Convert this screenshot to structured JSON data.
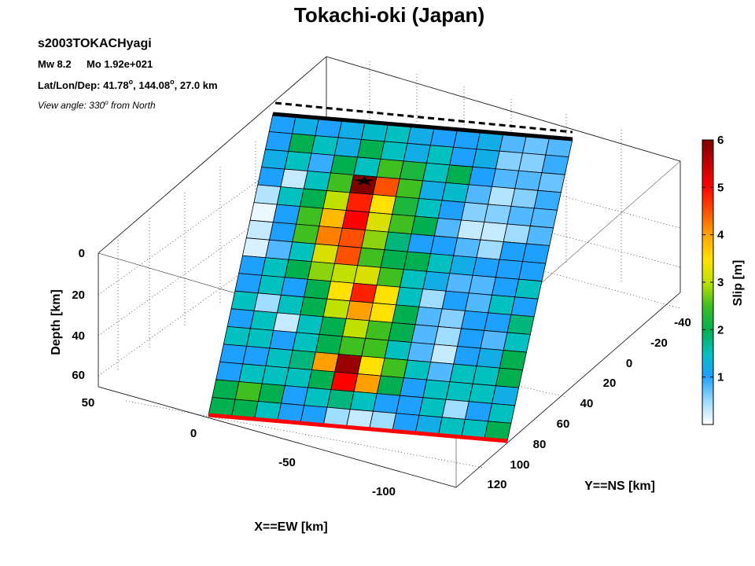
{
  "title": "Tokachi-oki (Japan)",
  "info": {
    "event_id": "s2003TOKACHyagi",
    "magnitude": "Mw 8.2",
    "moment": "Mo 1.92e+021",
    "location_label": "Lat/Lon/Dep:",
    "lat": "41.78",
    "lon": "144.08",
    "depth": "27.0 km",
    "degree_symbol": "o",
    "view_prefix": "View angle: 330",
    "view_suffix": " from North"
  },
  "colorbar": {
    "label": "Slip [m]",
    "ticks": [
      "1",
      "2",
      "3",
      "4",
      "5",
      "6"
    ],
    "range": [
      0,
      6
    ],
    "colormap": "jet (white-to-blue start)"
  },
  "axes": {
    "x_label": "X==EW [km]",
    "y_label": "Y==NS [km]",
    "z_label": "Depth [km]",
    "x_ticks": [
      "50",
      "0",
      "-50",
      "-100"
    ],
    "y_ticks": [
      "-40",
      "-20",
      "0",
      "20",
      "40",
      "60",
      "80",
      "100",
      "120"
    ],
    "z_ticks": [
      "0",
      "20",
      "40",
      "60"
    ],
    "grid": true,
    "box": true
  },
  "chart_data": {
    "type": "heatmap",
    "title": "Tokachi-oki (Japan)",
    "description_values": "slip on fault patches, 13 columns (along strike) x 17 rows (down dip, row 0 = top)",
    "value_unit": "m",
    "rows": 17,
    "cols": 13,
    "values": [
      [
        1.0,
        1.2,
        1.0,
        1.2,
        1.4,
        1.5,
        1.2,
        1.0,
        1.0,
        1.2,
        0.8,
        0.7,
        0.8
      ],
      [
        1.0,
        2.0,
        1.5,
        1.2,
        2.0,
        1.5,
        1.2,
        1.5,
        1.0,
        1.2,
        0.6,
        0.6,
        0.9
      ],
      [
        1.2,
        1.5,
        0.9,
        2.0,
        1.5,
        2.5,
        2.2,
        1.5,
        2.0,
        1.0,
        0.8,
        0.8,
        0.7
      ],
      [
        1.0,
        0.3,
        1.5,
        2.5,
        6.0,
        4.5,
        2.5,
        1.2,
        1.4,
        0.8,
        0.4,
        0.6,
        0.9
      ],
      [
        0.4,
        1.5,
        2.0,
        3.0,
        4.8,
        3.5,
        2.2,
        1.5,
        1.0,
        0.6,
        0.6,
        0.8,
        0.8
      ],
      [
        0.1,
        1.0,
        2.5,
        3.8,
        5.0,
        3.2,
        2.5,
        2.0,
        0.8,
        0.3,
        0.3,
        0.5,
        0.8
      ],
      [
        0.3,
        1.0,
        2.5,
        4.2,
        4.5,
        2.8,
        1.8,
        1.0,
        1.0,
        0.8,
        0.5,
        1.0,
        1.0
      ],
      [
        0.2,
        0.8,
        1.5,
        3.2,
        4.5,
        2.5,
        2.0,
        2.0,
        1.5,
        1.2,
        1.0,
        1.0,
        1.0
      ],
      [
        1.0,
        1.5,
        2.0,
        2.8,
        3.0,
        3.2,
        2.5,
        1.5,
        1.2,
        0.8,
        0.8,
        1.0,
        1.5
      ],
      [
        1.0,
        1.5,
        1.0,
        2.0,
        3.5,
        4.8,
        3.5,
        1.5,
        0.5,
        1.0,
        0.8,
        1.5,
        1.0
      ],
      [
        1.5,
        0.5,
        1.5,
        2.0,
        3.0,
        4.0,
        3.5,
        2.0,
        0.8,
        0.6,
        1.0,
        1.0,
        1.8
      ],
      [
        1.0,
        1.5,
        0.3,
        1.5,
        2.0,
        3.0,
        2.5,
        2.0,
        0.8,
        0.5,
        1.0,
        0.8,
        1.5
      ],
      [
        1.5,
        1.5,
        1.0,
        1.5,
        2.0,
        2.5,
        2.5,
        1.5,
        0.8,
        0.3,
        1.0,
        1.2,
        2.0
      ],
      [
        1.0,
        1.0,
        1.5,
        1.8,
        4.0,
        5.8,
        3.5,
        2.5,
        1.5,
        0.8,
        1.5,
        1.5,
        2.0
      ],
      [
        1.0,
        1.5,
        1.5,
        1.5,
        2.0,
        5.0,
        4.0,
        2.0,
        1.0,
        1.5,
        1.5,
        1.5,
        1.2
      ],
      [
        2.0,
        2.5,
        2.0,
        1.0,
        1.5,
        1.8,
        1.5,
        1.0,
        1.0,
        1.5,
        0.5,
        1.0,
        1.5
      ],
      [
        2.0,
        2.0,
        1.5,
        1.0,
        1.0,
        0.5,
        0.3,
        0.5,
        1.0,
        1.2,
        1.5,
        1.5,
        2.0
      ]
    ],
    "hypocenter": {
      "row": 3,
      "col": 4
    },
    "colorbar_range": [
      0,
      6
    ],
    "xlabel": "X==EW [km]",
    "ylabel": "Y==NS [km]",
    "zlabel": "Depth [km]"
  },
  "colors": {
    "trench_top": "#000000",
    "bottom_edge": "#ff0000",
    "grid": "#000000"
  }
}
